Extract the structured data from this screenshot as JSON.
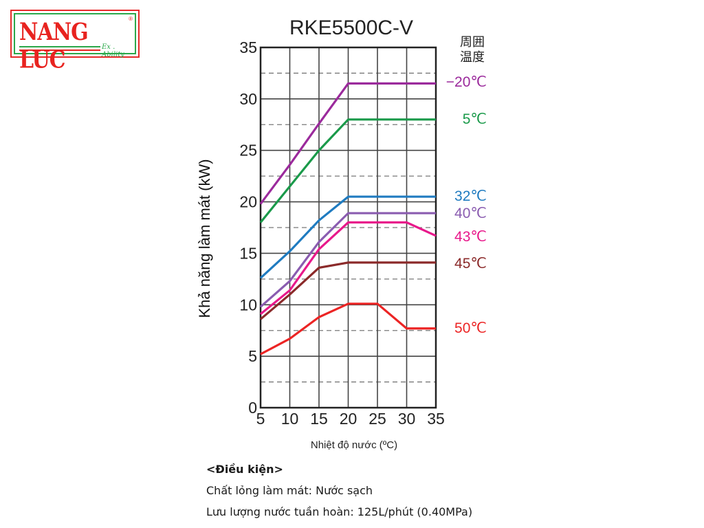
{
  "logo": {
    "name": "NANG LUC",
    "tagline": "Ex . Ability",
    "registered": "®"
  },
  "chart_data": {
    "type": "line",
    "title": "RKE5500C-V",
    "xlabel": "Nhiệt độ nước (ºC)",
    "ylabel": "Khả năng làm mát (kW)",
    "xlim": [
      5,
      35
    ],
    "ylim": [
      0,
      35
    ],
    "x_ticks": [
      5,
      10,
      15,
      20,
      25,
      30,
      35
    ],
    "y_ticks": [
      0,
      5,
      10,
      15,
      20,
      25,
      30,
      35
    ],
    "grid": true,
    "legend_title": "周囲\n温度",
    "legend_position": "right, labels at line ends",
    "series": [
      {
        "name": "−20℃",
        "color": "#9b2a9c",
        "points": [
          [
            5,
            19.8
          ],
          [
            10,
            23.6
          ],
          [
            15,
            27.6
          ],
          [
            20,
            31.5
          ],
          [
            35,
            31.5
          ]
        ]
      },
      {
        "name": "5℃",
        "color": "#1a9a4a",
        "points": [
          [
            5,
            18.0
          ],
          [
            10,
            21.5
          ],
          [
            15,
            25.0
          ],
          [
            20,
            28.0
          ],
          [
            35,
            28.0
          ]
        ]
      },
      {
        "name": "32℃",
        "color": "#1f7bc0",
        "points": [
          [
            5,
            12.6
          ],
          [
            10,
            15.2
          ],
          [
            15,
            18.2
          ],
          [
            20,
            20.5
          ],
          [
            35,
            20.5
          ]
        ]
      },
      {
        "name": "40℃",
        "color": "#8a5cb0",
        "points": [
          [
            5,
            9.8
          ],
          [
            10,
            12.3
          ],
          [
            15,
            16.1
          ],
          [
            20,
            18.9
          ],
          [
            35,
            18.9
          ]
        ]
      },
      {
        "name": "43℃",
        "color": "#e8198b",
        "points": [
          [
            5,
            9.1
          ],
          [
            10,
            11.4
          ],
          [
            15,
            15.4
          ],
          [
            20,
            18.0
          ],
          [
            30,
            18.0
          ],
          [
            35,
            16.7
          ]
        ]
      },
      {
        "name": "45℃",
        "color": "#8b2a2a",
        "points": [
          [
            5,
            8.6
          ],
          [
            10,
            11.0
          ],
          [
            15,
            13.6
          ],
          [
            20,
            14.1
          ],
          [
            35,
            14.1
          ]
        ]
      },
      {
        "name": "50℃",
        "color": "#ec2424",
        "points": [
          [
            5,
            5.2
          ],
          [
            10,
            6.7
          ],
          [
            15,
            8.8
          ],
          [
            20,
            10.1
          ],
          [
            25,
            10.1
          ],
          [
            30,
            7.7
          ],
          [
            35,
            7.7
          ]
        ]
      }
    ]
  },
  "conditions": {
    "heading": "<Điều kiện>",
    "coolant": "Chất lỏng làm mát: Nước sạch",
    "flow": "Lưu lượng nước tuần hoàn: 125L/phút (0.40MPa)"
  }
}
